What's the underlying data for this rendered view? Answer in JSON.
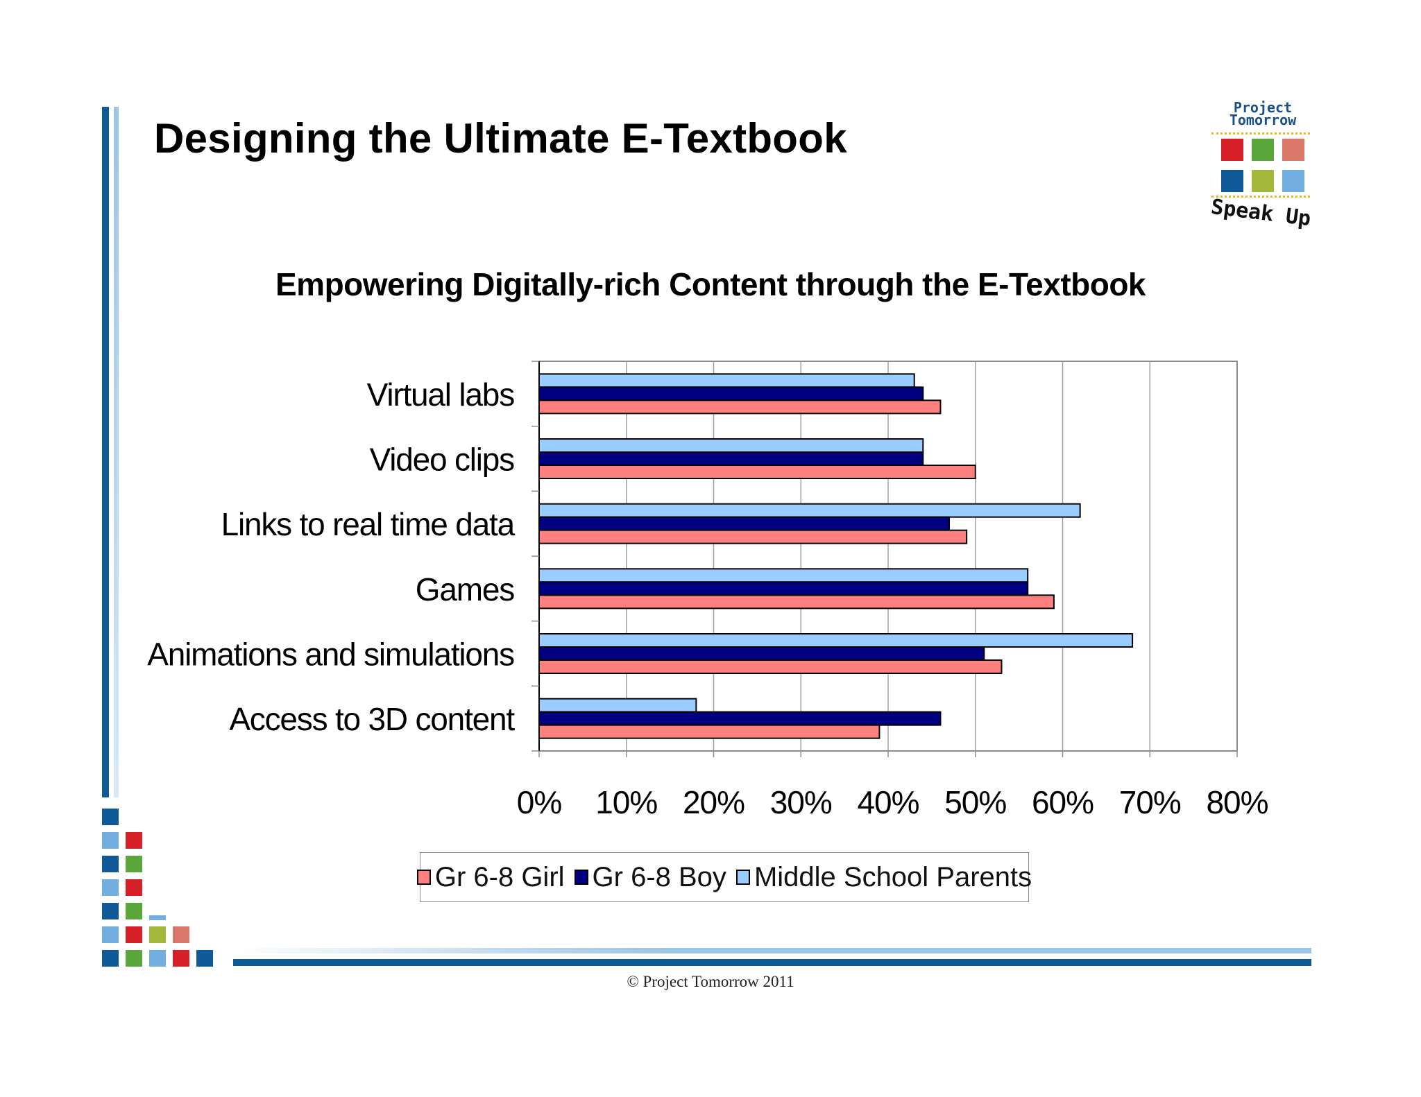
{
  "slide": {
    "title": "Designing the Ultimate E-Textbook",
    "copyright": "© Project Tomorrow 2011"
  },
  "logo": {
    "line1": "Project",
    "line2": "Tomorrow",
    "tagline": "Speak Up",
    "colors": [
      "#d62028",
      "#5aa83c",
      "#d9786a",
      "#0f5a96",
      "#a4b83c",
      "#72aee0"
    ]
  },
  "colors": {
    "accent_dark": "#0f5a96",
    "accent_light": "#72aee0",
    "red": "#d62028",
    "green": "#5aa83c",
    "olive": "#a4b83c",
    "salmon": "#d9786a"
  },
  "chart_data": {
    "type": "bar",
    "orientation": "horizontal",
    "title": "Empowering Digitally-rich Content through the E-Textbook",
    "xlabel": "",
    "ylabel": "",
    "categories": [
      "Virtual labs",
      "Video clips",
      "Links to real time data",
      "Games",
      "Animations and simulations",
      "Access to 3D content"
    ],
    "series": [
      {
        "name": "Gr 6-8 Girl",
        "color": "#ff8080",
        "values": [
          46,
          50,
          49,
          59,
          53,
          39
        ]
      },
      {
        "name": "Gr 6-8 Boy",
        "color": "#000080",
        "values": [
          44,
          44,
          47,
          56,
          51,
          46
        ]
      },
      {
        "name": "Middle School Parents",
        "color": "#99ccff",
        "values": [
          43,
          44,
          62,
          56,
          68,
          18
        ]
      }
    ],
    "xlim": [
      0,
      80
    ],
    "xticks": [
      "0%",
      "10%",
      "20%",
      "30%",
      "40%",
      "50%",
      "60%",
      "70%",
      "80%"
    ],
    "grid": true,
    "legend_position": "bottom"
  }
}
